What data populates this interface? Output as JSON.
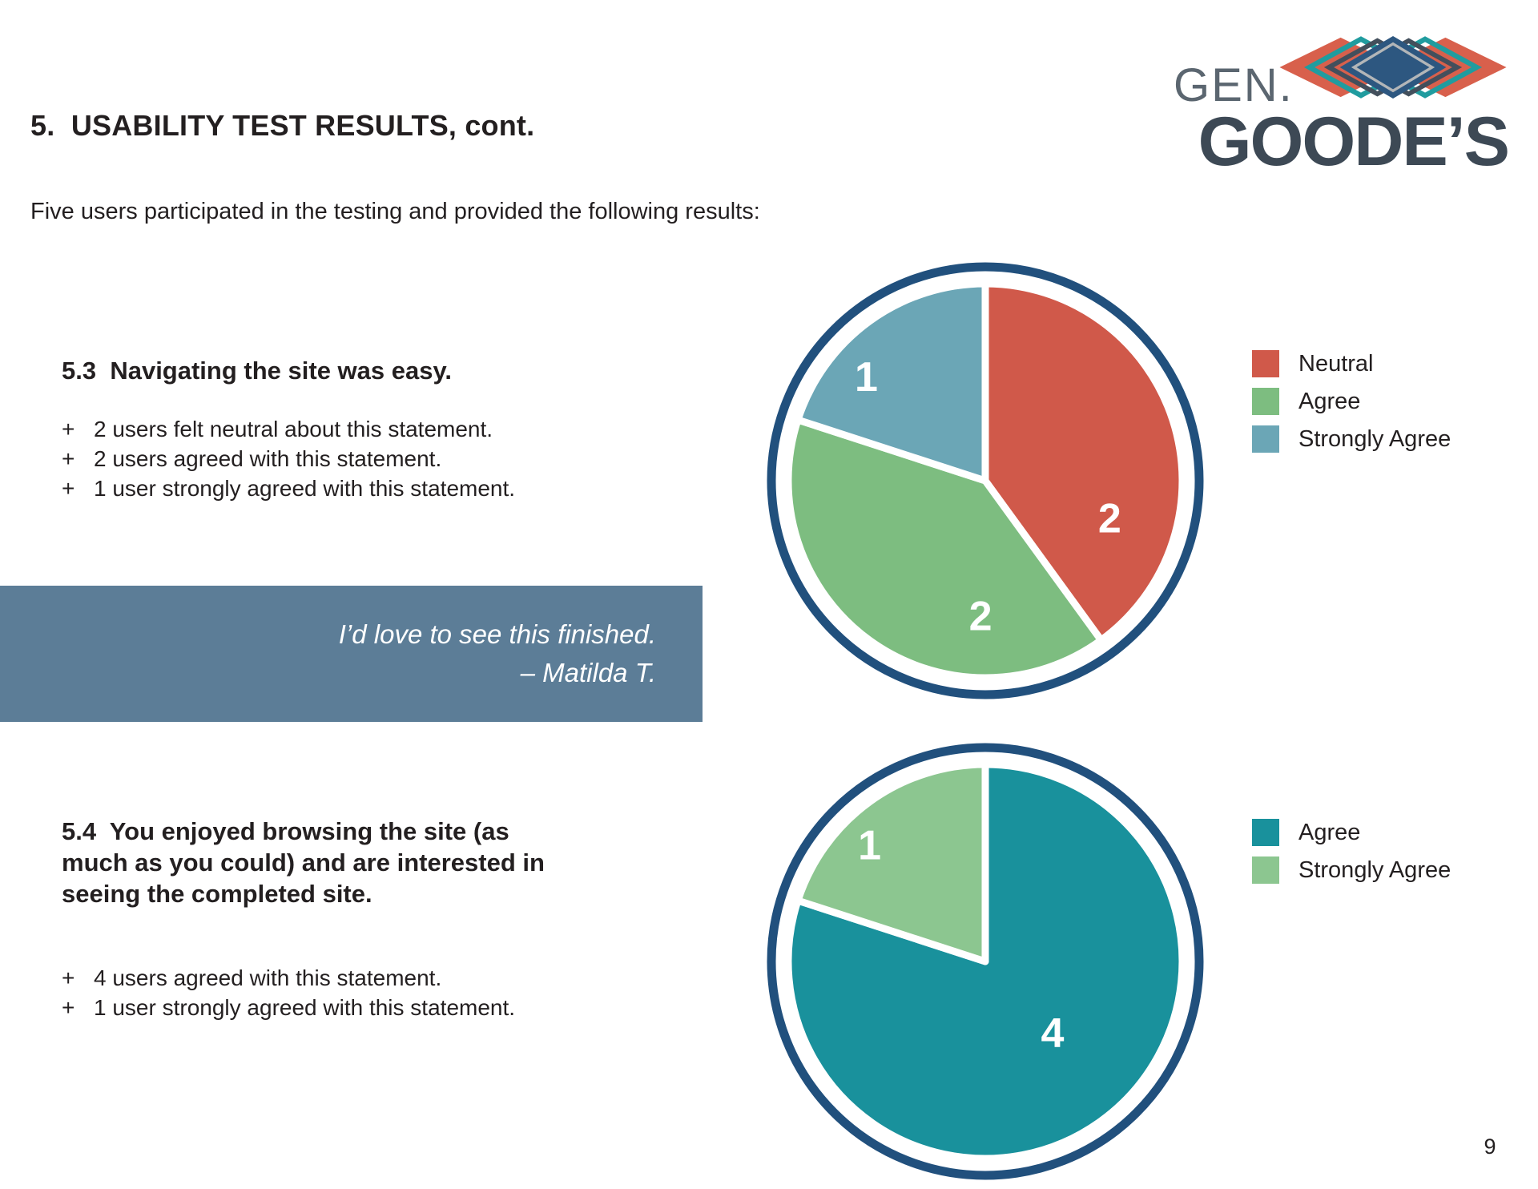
{
  "logo": {
    "gen": "GEN.",
    "goodes": "GOODE’S",
    "colors": {
      "gen_text": "#5b6670",
      "goodes_text": "#3d4955",
      "diamond_red": "#d8604c",
      "diamond_teal": "#209c9f",
      "diamond_dark": "#434f5c",
      "diamond_navy": "#2d5780",
      "diamond_inner_gray": "#b3b6b8"
    }
  },
  "header": {
    "title": "5.  USABILITY TEST RESULTS, cont.",
    "intro": "Five users participated in the testing and provided the following results:"
  },
  "section_53": {
    "heading": "5.3  Navigating the site was easy.",
    "bullets": [
      {
        "marker": "+",
        "text": "2 users felt neutral about this statement."
      },
      {
        "marker": "+",
        "text": "2 users agreed with this statement."
      },
      {
        "marker": "+",
        "text": "1 user strongly agreed with this statement."
      }
    ]
  },
  "quote": {
    "text": "I’d love to see this finished.",
    "attribution": "– Matilda T.",
    "background": "#5c7d97"
  },
  "section_54": {
    "heading": "5.4  You enjoyed browsing the site (as much as you could) and are interested in seeing the completed site.",
    "bullets": [
      {
        "marker": "+",
        "text": "4 users agreed with this statement."
      },
      {
        "marker": "+",
        "text": "1 user strongly agreed with this statement."
      }
    ]
  },
  "chart_data": [
    {
      "type": "pie",
      "title": "5.3 Navigating the site was easy.",
      "units": "users",
      "total": 5,
      "start_angle": 0,
      "direction": "clockwise",
      "legend_position": "right",
      "ring_color": "#21507d",
      "slices": [
        {
          "label": "Neutral",
          "value": 2,
          "color": "#d0594a",
          "label_angle": 107,
          "label_r": 0.66
        },
        {
          "label": "Agree",
          "value": 2,
          "color": "#7dbd80",
          "label_angle": 182,
          "label_r": 0.69
        },
        {
          "label": "Strongly Agree",
          "value": 1,
          "color": "#6ba6b6",
          "label_angle": 311,
          "label_r": 0.8
        }
      ]
    },
    {
      "type": "pie",
      "title": "5.4 You enjoyed browsing the site and are interested in seeing the completed site.",
      "units": "users",
      "total": 5,
      "start_angle": 0,
      "direction": "clockwise",
      "legend_position": "right",
      "ring_color": "#21507d",
      "slices": [
        {
          "label": "Agree",
          "value": 4,
          "color": "#19919c",
          "label_angle": 137,
          "label_r": 0.5
        },
        {
          "label": "Strongly Agree",
          "value": 1,
          "color": "#8cc690",
          "label_angle": 315,
          "label_r": 0.83
        }
      ]
    }
  ],
  "page": {
    "number": "9"
  }
}
